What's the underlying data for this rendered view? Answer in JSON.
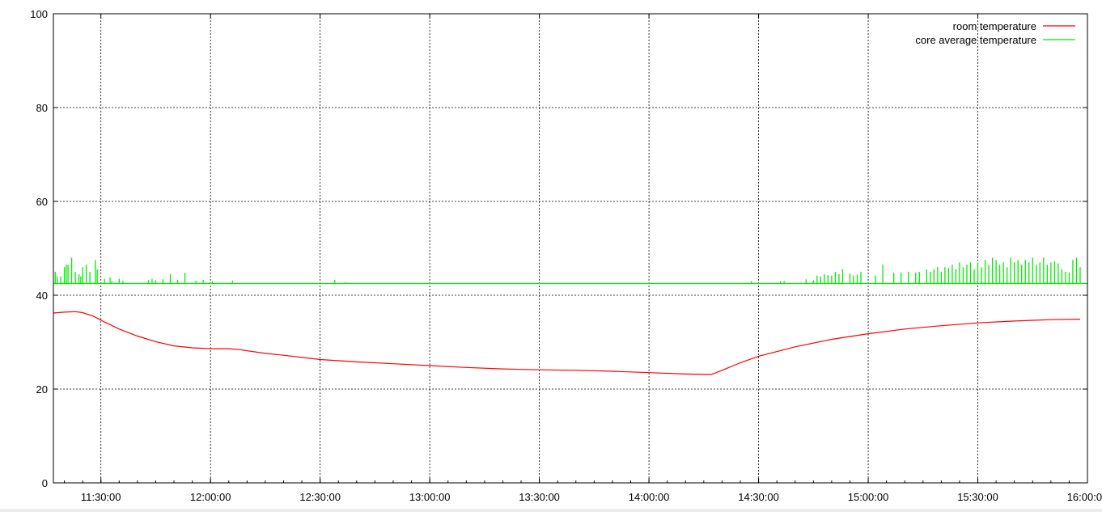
{
  "chart_data": {
    "type": "line",
    "title": "",
    "xlabel": "",
    "ylabel": "",
    "xlim": [
      "11:17:00",
      "16:00:00"
    ],
    "ylim": [
      0,
      100
    ],
    "grid": true,
    "legend_position": "top-right",
    "x_ticks": [
      "11:30:00",
      "12:00:00",
      "12:30:00",
      "13:00:00",
      "13:30:00",
      "14:00:00",
      "14:30:00",
      "15:00:00",
      "15:30:00",
      "16:00:00"
    ],
    "y_ticks": [
      0,
      20,
      40,
      60,
      80,
      100
    ],
    "series": [
      {
        "name": "room temperature",
        "color": "#ff0000",
        "x": [
          "11:17:00",
          "11:20:00",
          "11:23:00",
          "11:25:00",
          "11:28:00",
          "11:31:00",
          "11:35:00",
          "11:40:00",
          "11:45:00",
          "11:50:00",
          "11:55:00",
          "12:00:00",
          "12:05:00",
          "12:08:00",
          "12:15:00",
          "12:20:00",
          "12:30:00",
          "12:40:00",
          "12:50:00",
          "13:00:00",
          "13:10:00",
          "13:20:00",
          "13:30:00",
          "13:40:00",
          "13:50:00",
          "14:00:00",
          "14:10:00",
          "14:17:00",
          "14:20:00",
          "14:25:00",
          "14:30:00",
          "14:40:00",
          "14:50:00",
          "15:00:00",
          "15:10:00",
          "15:20:00",
          "15:30:00",
          "15:40:00",
          "15:50:00",
          "15:58:00"
        ],
        "y": [
          36.2,
          36.4,
          36.5,
          36.3,
          35.5,
          34.3,
          32.8,
          31.3,
          30.1,
          29.2,
          28.8,
          28.6,
          28.6,
          28.4,
          27.6,
          27.2,
          26.3,
          25.8,
          25.4,
          25.0,
          24.6,
          24.3,
          24.1,
          24.0,
          23.8,
          23.5,
          23.2,
          23.1,
          24.0,
          25.6,
          27.0,
          29.0,
          30.6,
          31.8,
          32.8,
          33.5,
          34.1,
          34.5,
          34.8,
          34.9
        ]
      },
      {
        "name": "core average temperature",
        "color": "#00ee00",
        "x": [
          "11:17:00",
          "16:00:00"
        ],
        "y": [
          42.5,
          42.5
        ],
        "spikes": [
          [
            "11:17:30",
            45
          ],
          [
            "11:18:00",
            44
          ],
          [
            "11:19:00",
            44
          ],
          [
            "11:20:00",
            46
          ],
          [
            "11:20:30",
            46.5
          ],
          [
            "11:21:00",
            46.5
          ],
          [
            "11:22:00",
            48
          ],
          [
            "11:23:00",
            45
          ],
          [
            "11:24:00",
            44.5
          ],
          [
            "11:24:30",
            44
          ],
          [
            "11:25:00",
            46
          ],
          [
            "11:26:00",
            46.5
          ],
          [
            "11:27:00",
            45
          ],
          [
            "11:28:30",
            47.5
          ],
          [
            "11:29:00",
            45.5
          ],
          [
            "11:31:00",
            43.5
          ],
          [
            "11:32:30",
            43.8
          ],
          [
            "11:33:00",
            43
          ],
          [
            "11:35:00",
            43.5
          ],
          [
            "11:36:00",
            43
          ],
          [
            "11:43:00",
            43.2
          ],
          [
            "11:44:00",
            43.5
          ],
          [
            "11:45:00",
            43.2
          ],
          [
            "11:47:00",
            43.4
          ],
          [
            "11:49:00",
            44.5
          ],
          [
            "11:51:00",
            43.3
          ],
          [
            "11:53:00",
            44.8
          ],
          [
            "11:56:00",
            43.1
          ],
          [
            "11:58:00",
            43.3
          ],
          [
            "12:00:30",
            43
          ],
          [
            "12:06:00",
            43.1
          ],
          [
            "12:34:00",
            43.3
          ],
          [
            "12:37:00",
            42.8
          ],
          [
            "14:28:00",
            43
          ],
          [
            "14:36:00",
            43
          ],
          [
            "14:37:00",
            43
          ],
          [
            "14:43:00",
            43.4
          ],
          [
            "14:45:00",
            43.2
          ],
          [
            "14:46:00",
            44.2
          ],
          [
            "14:47:00",
            44
          ],
          [
            "14:48:00",
            44.5
          ],
          [
            "14:49:00",
            44.3
          ],
          [
            "14:50:00",
            44.2
          ],
          [
            "14:51:00",
            45
          ],
          [
            "14:52:00",
            44.5
          ],
          [
            "14:53:00",
            45.5
          ],
          [
            "14:55:00",
            44.6
          ],
          [
            "14:56:00",
            44.2
          ],
          [
            "14:57:00",
            44.4
          ],
          [
            "14:58:00",
            45
          ],
          [
            "15:02:00",
            44.2
          ],
          [
            "15:04:00",
            46.5
          ],
          [
            "15:07:00",
            44.8
          ],
          [
            "15:09:00",
            44.8
          ],
          [
            "15:11:00",
            45
          ],
          [
            "15:13:00",
            44.8
          ],
          [
            "15:14:00",
            45
          ],
          [
            "15:16:00",
            45.5
          ],
          [
            "15:17:00",
            45
          ],
          [
            "15:18:00",
            45.5
          ],
          [
            "15:19:00",
            46
          ],
          [
            "15:20:00",
            45
          ],
          [
            "15:21:00",
            46
          ],
          [
            "15:22:00",
            45.8
          ],
          [
            "15:23:00",
            46.5
          ],
          [
            "15:24:00",
            45.5
          ],
          [
            "15:25:00",
            47
          ],
          [
            "15:26:00",
            46
          ],
          [
            "15:27:00",
            46.5
          ],
          [
            "15:28:00",
            47
          ],
          [
            "15:29:00",
            45.5
          ],
          [
            "15:30:00",
            47
          ],
          [
            "15:31:00",
            46
          ],
          [
            "15:32:00",
            47.5
          ],
          [
            "15:33:00",
            46.5
          ],
          [
            "15:34:00",
            48
          ],
          [
            "15:35:00",
            47.5
          ],
          [
            "15:36:00",
            46.5
          ],
          [
            "15:37:00",
            47
          ],
          [
            "15:38:00",
            46
          ],
          [
            "15:39:00",
            48
          ],
          [
            "15:40:00",
            47
          ],
          [
            "15:41:00",
            47.5
          ],
          [
            "15:42:00",
            46.5
          ],
          [
            "15:43:00",
            47.5
          ],
          [
            "15:44:00",
            47
          ],
          [
            "15:45:00",
            48
          ],
          [
            "15:46:00",
            46.5
          ],
          [
            "15:47:00",
            47
          ],
          [
            "15:48:00",
            48
          ],
          [
            "15:49:00",
            46.5
          ],
          [
            "15:50:00",
            47
          ],
          [
            "15:51:00",
            47.2
          ],
          [
            "15:52:00",
            46.8
          ],
          [
            "15:53:00",
            45.5
          ],
          [
            "15:54:00",
            45
          ],
          [
            "15:55:00",
            44.8
          ],
          [
            "15:56:00",
            47.5
          ],
          [
            "15:57:00",
            48
          ],
          [
            "15:58:00",
            46
          ]
        ]
      }
    ]
  }
}
